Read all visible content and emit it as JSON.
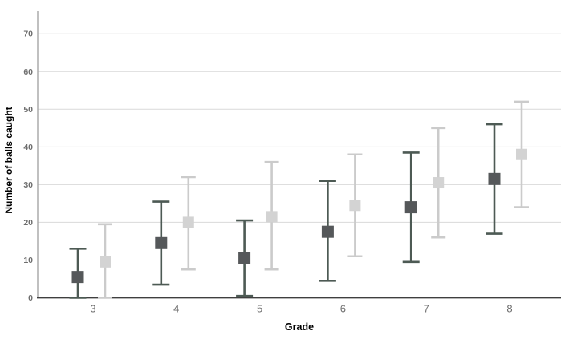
{
  "chart_data": {
    "type": "errorbar",
    "title": "",
    "xlabel": "Grade",
    "ylabel": "Number of balls caught",
    "categories": [
      "3",
      "4",
      "5",
      "6",
      "7",
      "8"
    ],
    "yticks": [
      0,
      10,
      20,
      30,
      40,
      50,
      60,
      70
    ],
    "ylim": [
      0,
      76
    ],
    "grid": "horizontal-only",
    "legend_position": "none",
    "series": [
      {
        "name": "dark-gray",
        "marker_color": "#55585a",
        "line_color": "#4d5a54",
        "means": [
          5.5,
          14.5,
          10.5,
          17.5,
          24,
          31.5
        ],
        "ci_low": [
          0,
          3.5,
          0.5,
          4.5,
          9.5,
          17
        ],
        "ci_high": [
          13,
          25.5,
          20.5,
          31,
          38.5,
          46
        ]
      },
      {
        "name": "light-gray",
        "marker_color": "#d3d3d3",
        "line_color": "#cbcbcb",
        "means": [
          9.5,
          20,
          21.5,
          24.5,
          30.5,
          38
        ],
        "ci_low": [
          0,
          7.5,
          7.5,
          11,
          16,
          24
        ],
        "ci_high": [
          19.5,
          32,
          36,
          38,
          45,
          52
        ]
      }
    ],
    "colors": {
      "gridline": "#d9d9d9",
      "y_axis_line": "#a6a6a6",
      "x_axis_line": "#3f3f3f",
      "tick_label": "#6e6e6e",
      "axis_title": "#000000",
      "background": "#ffffff"
    }
  }
}
